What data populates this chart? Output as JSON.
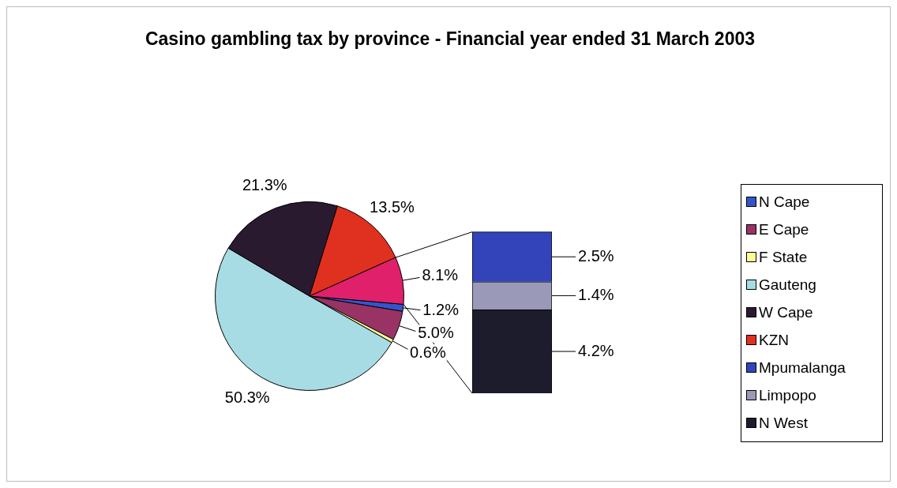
{
  "chart_data": [
    {
      "type": "pie",
      "title": "Casino gambling tax by province - Financial year ended 31 March 2003",
      "categories": [
        "N Cape",
        "E Cape",
        "F State",
        "Gauteng",
        "W Cape",
        "KZN",
        null
      ],
      "values": [
        1.2,
        5.0,
        0.6,
        50.3,
        21.3,
        13.5,
        8.1
      ],
      "colors": [
        "#3355cc",
        "#993366",
        "#ffff99",
        "#a8dce4",
        "#2a1a30",
        "#e03020",
        "#e0206a"
      ],
      "value_labels": [
        "1.2%",
        "5.0%",
        "0.6%",
        "50.3%",
        "21.3%",
        "13.5%",
        "8.1%"
      ],
      "legend": "right"
    },
    {
      "type": "bar",
      "stacked": true,
      "categories": [
        null
      ],
      "legend": "right",
      "series": [
        {
          "name": "N West",
          "color": "#1c1c2c",
          "values": [
            4.2
          ],
          "value_labels": [
            "4.2%"
          ]
        },
        {
          "name": "Limpopo",
          "color": "#9a9ab8",
          "values": [
            1.4
          ],
          "value_labels": [
            "1.4%"
          ]
        },
        {
          "name": "Mpumalanga",
          "color": "#3344bb",
          "values": [
            2.5
          ],
          "value_labels": [
            "2.5%"
          ]
        }
      ]
    }
  ]
}
